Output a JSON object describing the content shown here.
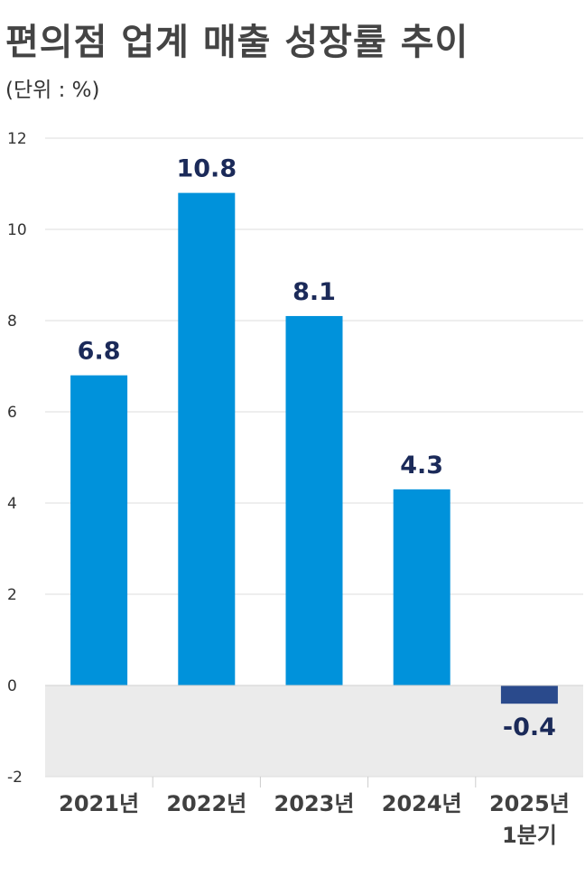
{
  "chart_data": {
    "type": "bar",
    "title": "편의점 업계 매출 성장률 추이",
    "unit_label": "(단위 : %)",
    "categories": [
      [
        "2021년"
      ],
      [
        "2022년"
      ],
      [
        "2023년"
      ],
      [
        "2024년"
      ],
      [
        "2025년",
        "1분기"
      ]
    ],
    "values": [
      6.8,
      10.8,
      8.1,
      4.3,
      -0.4
    ],
    "value_labels": [
      "6.8",
      "10.8",
      "8.1",
      "4.3",
      "-0.4"
    ],
    "ylim": [
      -2,
      12
    ],
    "yticks": [
      "12",
      "10",
      "8",
      "6",
      "4",
      "2",
      "0",
      "-2"
    ],
    "grid": true,
    "colors": {
      "positive_bar": "#0092DB",
      "negative_bar": "#2A4A8C",
      "negative_zone": "#EBEBEB",
      "data_label": "#1B2A59"
    }
  }
}
